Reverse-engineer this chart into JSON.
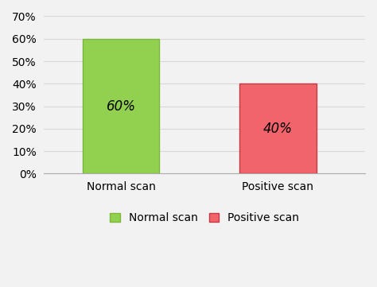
{
  "categories": [
    "Normal scan",
    "Positive scan"
  ],
  "values": [
    0.6,
    0.4
  ],
  "bar_colors": [
    "#92d050",
    "#f1646c"
  ],
  "bar_edge_colors": [
    "#7ab83a",
    "#c83a42"
  ],
  "labels": [
    "60%",
    "40%"
  ],
  "legend_labels": [
    "Normal scan",
    "Positive scan"
  ],
  "legend_colors": [
    "#92d050",
    "#f1646c"
  ],
  "legend_edge_colors": [
    "#7ab83a",
    "#c83a42"
  ],
  "ylim": [
    0,
    0.7
  ],
  "yticks": [
    0.0,
    0.1,
    0.2,
    0.3,
    0.4,
    0.5,
    0.6,
    0.7
  ],
  "ytick_labels": [
    "0%",
    "10%",
    "20%",
    "30%",
    "40%",
    "50%",
    "60%",
    "70%"
  ],
  "background_color": "#f2f2f2",
  "bar_width": 0.22,
  "label_fontsize": 12,
  "tick_fontsize": 10,
  "legend_fontsize": 10,
  "bar_positions": [
    0.3,
    0.75
  ]
}
